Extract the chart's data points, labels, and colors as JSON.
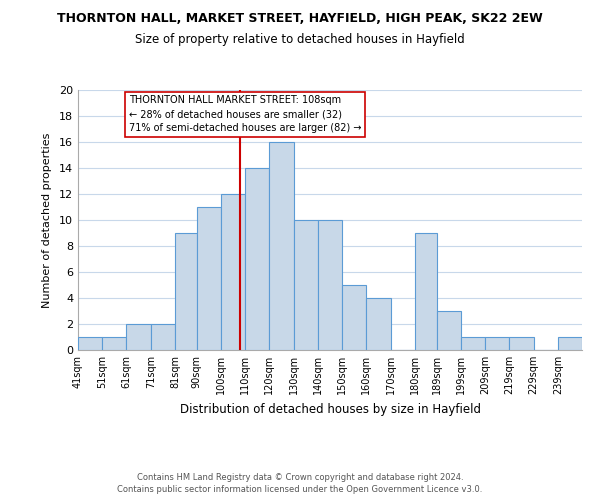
{
  "title": "THORNTON HALL, MARKET STREET, HAYFIELD, HIGH PEAK, SK22 2EW",
  "subtitle": "Size of property relative to detached houses in Hayfield",
  "xlabel": "Distribution of detached houses by size in Hayfield",
  "ylabel": "Number of detached properties",
  "bin_labels": [
    "41sqm",
    "51sqm",
    "61sqm",
    "71sqm",
    "81sqm",
    "90sqm",
    "100sqm",
    "110sqm",
    "120sqm",
    "130sqm",
    "140sqm",
    "150sqm",
    "160sqm",
    "170sqm",
    "180sqm",
    "189sqm",
    "199sqm",
    "209sqm",
    "219sqm",
    "229sqm",
    "239sqm"
  ],
  "bin_edges": [
    41,
    51,
    61,
    71,
    81,
    90,
    100,
    110,
    120,
    130,
    140,
    150,
    160,
    170,
    180,
    189,
    199,
    209,
    219,
    229,
    239,
    249
  ],
  "counts": [
    1,
    1,
    2,
    2,
    9,
    11,
    12,
    14,
    16,
    10,
    10,
    5,
    4,
    0,
    9,
    3,
    1,
    1,
    1,
    0,
    1
  ],
  "bar_color": "#c8d8e8",
  "bar_edge_color": "#5b9bd5",
  "vline_x": 108,
  "vline_color": "#cc0000",
  "annotation_line1": "THORNTON HALL MARKET STREET: 108sqm",
  "annotation_line2": "← 28% of detached houses are smaller (32)",
  "annotation_line3": "71% of semi-detached houses are larger (82) →",
  "annotation_box_color": "#ffffff",
  "annotation_box_edge": "#cc0000",
  "ylim": [
    0,
    20
  ],
  "yticks": [
    0,
    2,
    4,
    6,
    8,
    10,
    12,
    14,
    16,
    18,
    20
  ],
  "footer1": "Contains HM Land Registry data © Crown copyright and database right 2024.",
  "footer2": "Contains public sector information licensed under the Open Government Licence v3.0.",
  "bg_color": "#ffffff",
  "grid_color": "#c8d8ea"
}
